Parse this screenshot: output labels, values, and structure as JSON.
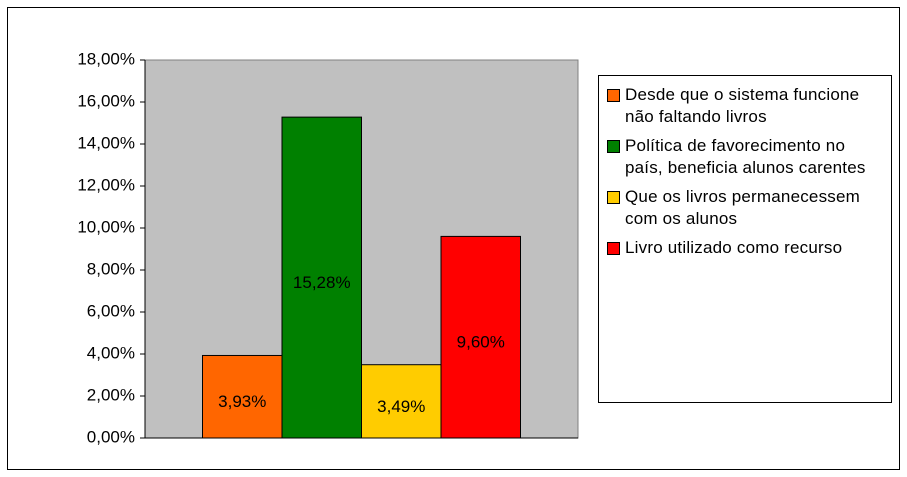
{
  "chart_data": {
    "type": "bar",
    "categories": [
      null
    ],
    "series": [
      {
        "name": "Desde que o sistema funcione não faltando livros",
        "color": "#ff6600",
        "values": [
          3.93
        ],
        "value_labels": [
          "3,93%"
        ]
      },
      {
        "name": "Política de favorecimento no país, beneficia alunos carentes",
        "color": "#008000",
        "values": [
          15.28
        ],
        "value_labels": [
          "15,28%"
        ]
      },
      {
        "name": "Que os livros permanecessem com os alunos",
        "color": "#ffcc00",
        "values": [
          3.49
        ],
        "value_labels": [
          "3,49%"
        ]
      },
      {
        "name": "Livro utilizado como recurso",
        "color": "#ff0000",
        "values": [
          9.6
        ],
        "value_labels": [
          "9,60%"
        ]
      }
    ],
    "ylim": [
      0,
      18
    ],
    "yticks": [
      {
        "value": 0,
        "label": "0,00%"
      },
      {
        "value": 2,
        "label": "2,00%"
      },
      {
        "value": 4,
        "label": "4,00%"
      },
      {
        "value": 6,
        "label": "6,00%"
      },
      {
        "value": 8,
        "label": "8,00%"
      },
      {
        "value": 10,
        "label": "10,00%"
      },
      {
        "value": 12,
        "label": "12,00%"
      },
      {
        "value": 14,
        "label": "14,00%"
      },
      {
        "value": 16,
        "label": "16,00%"
      },
      {
        "value": 18,
        "label": "18,00%"
      }
    ],
    "legend": "right",
    "plot_background": "#c0c0c0"
  }
}
